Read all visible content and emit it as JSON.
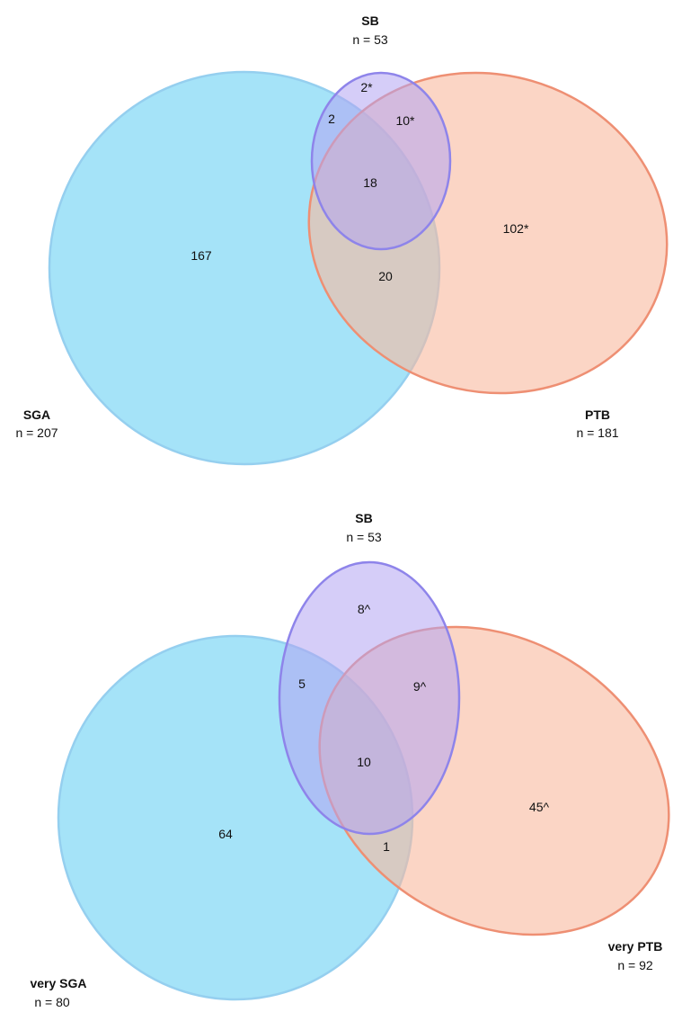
{
  "diagrams": [
    {
      "sets": {
        "sga": {
          "name": "SGA",
          "count": "n = 207"
        },
        "sb": {
          "name": "SB",
          "count": "n = 53"
        },
        "ptb": {
          "name": "PTB",
          "count": "n = 181"
        }
      },
      "regions": {
        "sga_only": "167",
        "sb_only": "2*",
        "sga_sb": "2",
        "sb_ptb": "10*",
        "all_three": "18",
        "sga_ptb": "20",
        "ptb_only": "102*"
      }
    },
    {
      "sets": {
        "sga": {
          "name": "very SGA",
          "count": "n = 80"
        },
        "sb": {
          "name": "SB",
          "count": "n = 53"
        },
        "ptb": {
          "name": "very PTB",
          "count": "n = 92"
        }
      },
      "regions": {
        "sga_only": "64",
        "sb_only": "8^",
        "sga_sb": "5",
        "sb_ptb": "9^",
        "all_three": "10",
        "sga_ptb": "1",
        "ptb_only": "45^"
      }
    }
  ],
  "colors": {
    "sga_fill": "#8fdcf6",
    "sga_stroke": "#95cfef",
    "ptb_fill": "#f9b99f",
    "ptb_stroke": "#ee8f73",
    "sb_fill": "#b3a4f2",
    "sb_stroke": "#8e84ea"
  }
}
